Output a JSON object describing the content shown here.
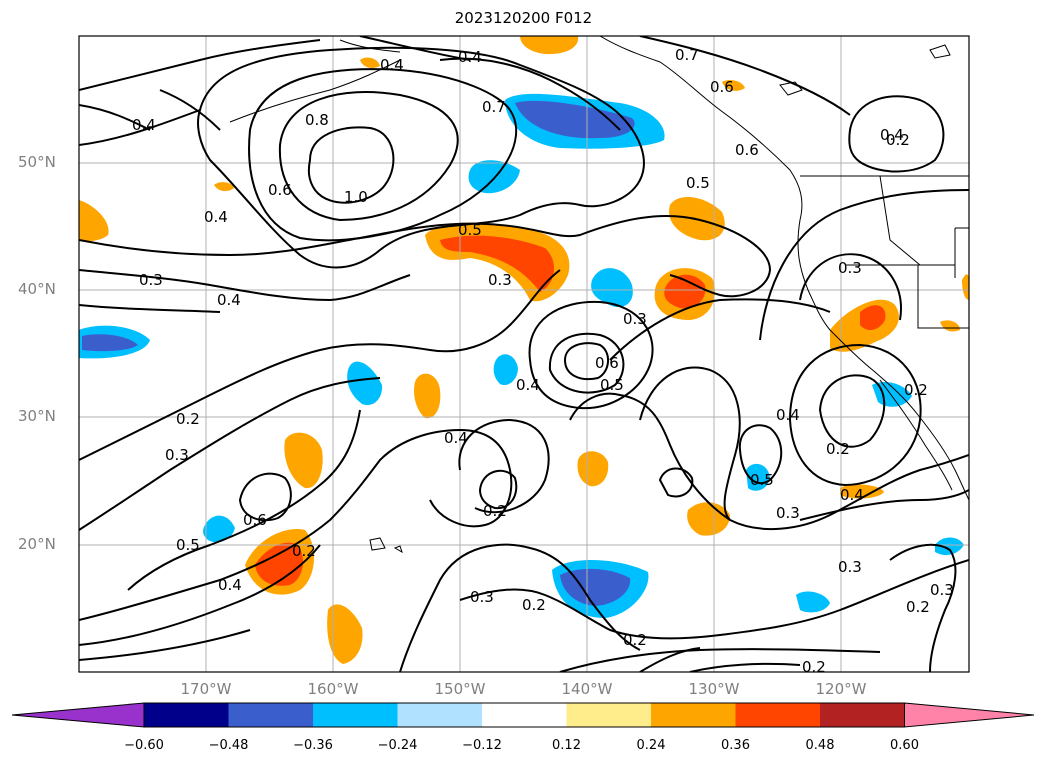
{
  "title": "2023120200 F012",
  "lat_labels": [
    "50°N",
    "40°N",
    "30°N",
    "20°N"
  ],
  "lon_labels": [
    "170°W",
    "160°W",
    "150°W",
    "140°W",
    "130°W",
    "120°W"
  ],
  "colorbar": {
    "tick_labels": [
      "−0.60",
      "−0.48",
      "−0.36",
      "−0.24",
      "−0.12",
      "0.12",
      "0.24",
      "0.36",
      "0.48",
      "0.60"
    ],
    "colors": [
      "#9932cc",
      "#00008b",
      "#3a5fcd",
      "#00bfff",
      "#b0e2ff",
      "#ffffff",
      "#ffec8b",
      "#ffa500",
      "#ff4500",
      "#b22222",
      "#ff83a8"
    ]
  },
  "contour_labels": [
    "0.4",
    "0.7",
    "0.6",
    "0.8",
    "0.4",
    "0.7",
    "0.6",
    "0.5",
    "1.0",
    "0.6",
    "0.4",
    "0.5",
    "0.3",
    "0.3",
    "0.4",
    "0.3",
    "0.3",
    "0.6",
    "0.5",
    "0.4",
    "0.2",
    "0.3",
    "0.4",
    "0.6",
    "0.2",
    "0.5",
    "0.4",
    "0.2",
    "0.2",
    "0.3",
    "0.2",
    "0.4",
    "0.5",
    "0.3",
    "0.3",
    "0.4",
    "0.2",
    "0.3",
    "0.2",
    "0.2",
    "0.2",
    "0.4",
    "0.4",
    "0.2"
  ]
}
